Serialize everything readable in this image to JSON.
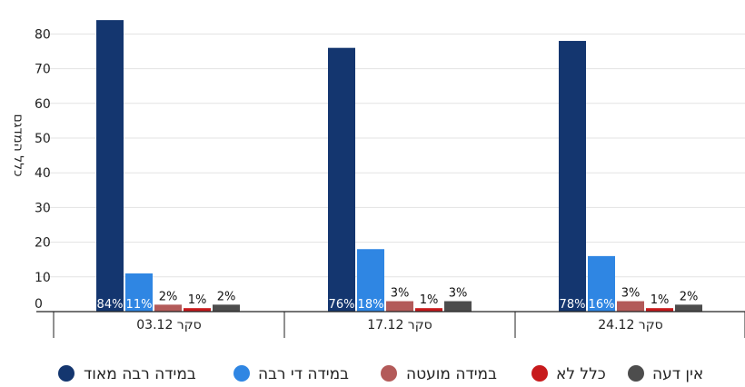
{
  "chart_data": {
    "type": "bar",
    "title": "",
    "ylabel": "כלל המדגם",
    "xlabel": "",
    "ylim": [
      0,
      85
    ],
    "yticks": [
      0,
      10,
      20,
      30,
      40,
      50,
      60,
      70,
      80
    ],
    "grid": true,
    "legend_position": "bottom",
    "categories": [
      "סקר 03.12",
      "סקר 17.12",
      "סקר 24.12"
    ],
    "series": [
      {
        "name": "במידה רבה מאוד",
        "color": "#14366f",
        "values": [
          84,
          76,
          78
        ],
        "labels": [
          "84%",
          "76%",
          "78%"
        ]
      },
      {
        "name": "במידה די רבה",
        "color": "#2f86e3",
        "values": [
          11,
          18,
          16
        ],
        "labels": [
          "11%",
          "18%",
          "16%"
        ]
      },
      {
        "name": "במידה מועטה",
        "color": "#b35a59",
        "values": [
          2,
          3,
          3
        ],
        "labels": [
          "2%",
          "3%",
          "3%"
        ]
      },
      {
        "name": "כלל לא",
        "color": "#c71a1c",
        "values": [
          1,
          1,
          1
        ],
        "labels": [
          "1%",
          "1%",
          "1%"
        ]
      },
      {
        "name": "אין דעה",
        "color": "#4d4d4d",
        "values": [
          2,
          3,
          2
        ],
        "labels": [
          "2%",
          "3%",
          "2%"
        ]
      }
    ]
  }
}
